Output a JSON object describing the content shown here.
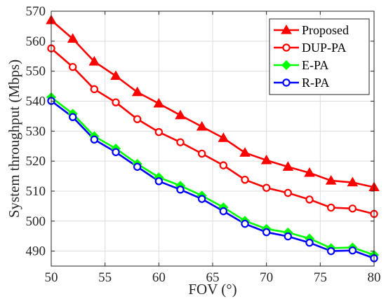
{
  "chart_data": {
    "type": "line",
    "title": "",
    "xlabel": "FOV (°)",
    "ylabel": "System throughput (Mbps)",
    "xlim": [
      50,
      80
    ],
    "ylim": [
      485,
      570
    ],
    "xticks": [
      50,
      55,
      60,
      65,
      70,
      75,
      80
    ],
    "yticks": [
      490,
      500,
      510,
      520,
      530,
      540,
      550,
      560,
      570
    ],
    "grid": true,
    "legend_position": "top-right",
    "x": [
      50,
      52,
      54,
      56,
      58,
      60,
      62,
      64,
      66,
      68,
      70,
      72,
      74,
      76,
      78,
      80
    ],
    "series": [
      {
        "name": "Proposed",
        "marker": "triangle",
        "color": "#ff0000",
        "marker_fill": "#ff0000",
        "values": [
          567,
          560.8,
          553.2,
          548.4,
          543,
          539.2,
          535.3,
          531.5,
          527.7,
          522.8,
          520.3,
          518.1,
          516.1,
          513.5,
          512.9,
          511.3
        ]
      },
      {
        "name": "DUP-PA",
        "marker": "circle",
        "color": "#ff0000",
        "marker_fill": "#ffffff",
        "values": [
          557.6,
          551.4,
          544,
          539.6,
          534,
          529.7,
          526.3,
          522.5,
          518.6,
          513.8,
          511.1,
          509.4,
          507.2,
          504.5,
          504.2,
          502.4
        ]
      },
      {
        "name": "E-PA",
        "marker": "diamond",
        "color": "#00ff00",
        "marker_fill": "#00ff00",
        "values": [
          541.3,
          535.8,
          528.3,
          524.2,
          519.1,
          514.6,
          511.8,
          508.5,
          504.6,
          500.1,
          497.4,
          496.2,
          494.2,
          491,
          491.2,
          488.7
        ]
      },
      {
        "name": "R-PA",
        "marker": "circle",
        "color": "#0000ff",
        "marker_fill": "#ffffff",
        "values": [
          540.1,
          534.7,
          527.2,
          523,
          518.1,
          513.3,
          510.5,
          507.4,
          503.3,
          499.1,
          496.3,
          494.9,
          492.8,
          490,
          490.2,
          487.6
        ]
      }
    ]
  }
}
